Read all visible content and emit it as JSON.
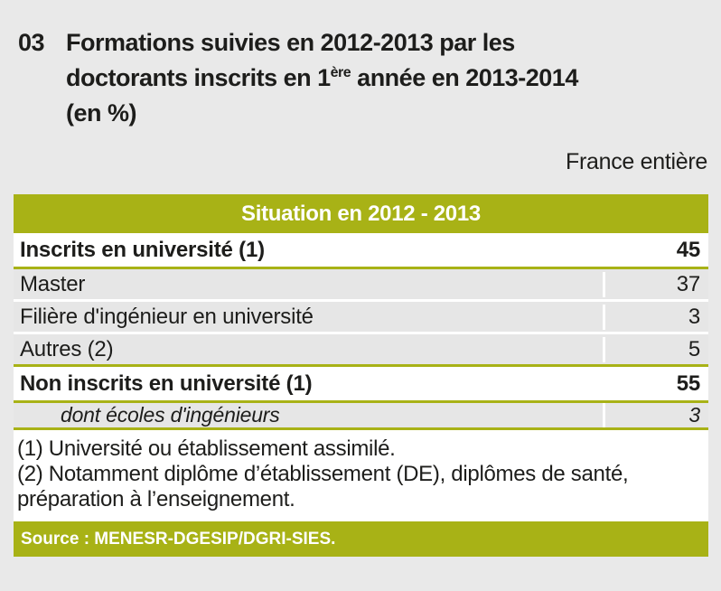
{
  "header": {
    "figure_number": "03",
    "title_line1": "Formations suivies en 2012-2013 par les",
    "title_line2_pre": "doctorants inscrits en 1",
    "title_line2_sup": "ère",
    "title_line2_post": " année en 2013-2014",
    "title_line3": "(en %)",
    "region_label": "France entière"
  },
  "table": {
    "column_header": "Situation en 2012 - 2013",
    "rows": [
      {
        "label": "Inscrits en université (1)",
        "value": "45",
        "style": "total"
      },
      {
        "label": "Master",
        "value": "37",
        "style": "detail"
      },
      {
        "label": "Filière d'ingénieur en université",
        "value": "3",
        "style": "detail"
      },
      {
        "label": "Autres (2)",
        "value": "5",
        "style": "detail"
      },
      {
        "label": "Non inscrits en université (1)",
        "value": "55",
        "style": "total"
      },
      {
        "label": "dont écoles d'ingénieurs",
        "value": "3",
        "style": "dont-italic"
      }
    ]
  },
  "footnotes": [
    "(1) Université ou établissement assimilé.",
    "(2) Notamment diplôme d’établissement (DE), diplômes de santé, préparation à l’enseignement."
  ],
  "source": "Source : MENESR-DGESIP/DGRI-SIES.",
  "colors": {
    "accent_olive": "#a8b216",
    "row_gray": "#e6e6e6",
    "page_bg": "#e9e9e9",
    "panel_bg": "#ffffff",
    "text": "#1d1d1b",
    "header_text": "#ffffff"
  }
}
